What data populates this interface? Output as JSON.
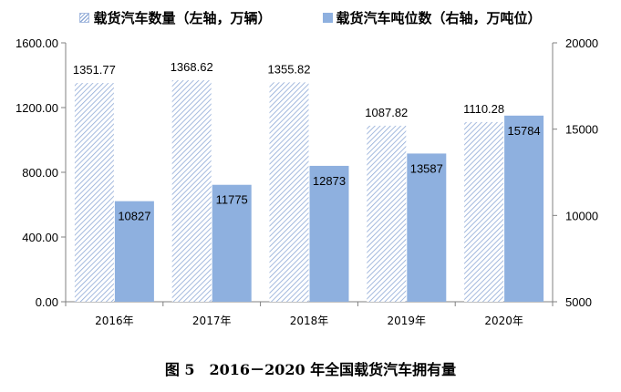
{
  "legend": {
    "series1": "载货汽车数量（左轴，万辆）",
    "series2": "载货汽车吨位数（右轴，万吨位）"
  },
  "caption": "图 5　2016－2020 年全国载货汽车拥有量",
  "colors": {
    "bar_solid": "#8eb0df",
    "hatch": "#8ea9d6",
    "axis": "#808080"
  },
  "chart_data": {
    "type": "bar",
    "categories": [
      "2016年",
      "2017年",
      "2018年",
      "2019年",
      "2020年"
    ],
    "series": [
      {
        "name": "载货汽车数量（左轴，万辆）",
        "axis": "left",
        "style": "hatched",
        "values": [
          1351.77,
          1368.62,
          1355.82,
          1087.82,
          1110.28
        ],
        "labels": [
          "1351.77",
          "1368.62",
          "1355.82",
          "1087.82",
          "1110.28"
        ]
      },
      {
        "name": "载货汽车吨位数（右轴，万吨位）",
        "axis": "right",
        "style": "solid",
        "values": [
          10827,
          11775,
          12873,
          13587,
          15784
        ],
        "labels": [
          "10827",
          "11775",
          "12873",
          "13587",
          "15784"
        ]
      }
    ],
    "left_axis": {
      "ylim": [
        0,
        1600
      ],
      "ticks": [
        0,
        400,
        800,
        1200,
        1600
      ],
      "tick_labels": [
        "0.00",
        "400.00",
        "800.00",
        "1200.00",
        "1600.00"
      ]
    },
    "right_axis": {
      "ylim": [
        5000,
        20000
      ],
      "ticks": [
        5000,
        10000,
        15000,
        20000
      ],
      "tick_labels": [
        "5000",
        "10000",
        "15000",
        "20000"
      ]
    },
    "grid": false,
    "legend_position": "top"
  }
}
